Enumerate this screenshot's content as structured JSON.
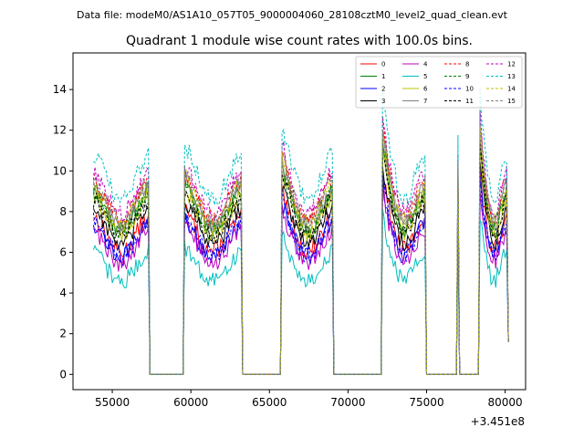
{
  "chart_data": {
    "type": "line",
    "suptitle": "Data file: modeM0/AS1A10_057T05_9000004060_28108cztM0_level2_quad_clean.evt",
    "title": "Quadrant 1 module wise count rates with 100.0s bins.",
    "xlabel": "",
    "ylabel": "",
    "x_offset_label": "+3.451e8",
    "xlim": [
      52500,
      81300
    ],
    "ylim": [
      -0.75,
      15.8
    ],
    "xticks": [
      55000,
      60000,
      65000,
      70000,
      75000,
      80000
    ],
    "xtick_labels": [
      "55000",
      "60000",
      "65000",
      "70000",
      "75000",
      "80000"
    ],
    "yticks": [
      0,
      2,
      4,
      6,
      8,
      10,
      12,
      14
    ],
    "ytick_labels": [
      "0",
      "2",
      "4",
      "6",
      "8",
      "10",
      "12",
      "14"
    ],
    "grid": false,
    "legend_position": "upper right",
    "legend_columns": 4,
    "segments": [
      {
        "start": 53800,
        "end": 57300,
        "peak_scale": 1.0
      },
      {
        "start": 59600,
        "end": 63200,
        "peak_scale": 1.05
      },
      {
        "start": 65800,
        "end": 69000,
        "peak_scale": 1.15
      },
      {
        "start": 72200,
        "end": 74900,
        "peak_scale": 1.3
      },
      {
        "start": 77000,
        "end": 77000,
        "peak_scale": 1.15
      },
      {
        "start": 78400,
        "end": 80100,
        "peak_scale": 1.3
      }
    ],
    "gaps_level": 0.0,
    "series": [
      {
        "name": "0",
        "base": 7.2,
        "color": "#ff0000",
        "dash": "solid"
      },
      {
        "name": "1",
        "base": 8.4,
        "color": "#008000",
        "dash": "solid"
      },
      {
        "name": "2",
        "base": 6.9,
        "color": "#0000ff",
        "dash": "solid"
      },
      {
        "name": "3",
        "base": 7.6,
        "color": "#000000",
        "dash": "solid"
      },
      {
        "name": "4",
        "base": 6.6,
        "color": "#bf00bf",
        "dash": "solid"
      },
      {
        "name": "5",
        "base": 5.6,
        "color": "#00bfbf",
        "dash": "solid"
      },
      {
        "name": "6",
        "base": 8.1,
        "color": "#bfbf00",
        "dash": "solid"
      },
      {
        "name": "7",
        "base": 8.6,
        "color": "#808080",
        "dash": "solid"
      },
      {
        "name": "8",
        "base": 8.9,
        "color": "#ff0000",
        "dash": "dashed"
      },
      {
        "name": "9",
        "base": 8.2,
        "color": "#008000",
        "dash": "dashed"
      },
      {
        "name": "10",
        "base": 7.0,
        "color": "#0000ff",
        "dash": "dashed"
      },
      {
        "name": "11",
        "base": 8.0,
        "color": "#000000",
        "dash": "dashed"
      },
      {
        "name": "12",
        "base": 9.2,
        "color": "#bf00bf",
        "dash": "dashed"
      },
      {
        "name": "13",
        "base": 10.0,
        "color": "#00bfbf",
        "dash": "dashed"
      },
      {
        "name": "14",
        "base": 8.7,
        "color": "#bfbf00",
        "dash": "dashed"
      },
      {
        "name": "15",
        "base": 8.8,
        "color": "#808080",
        "dash": "dashed"
      }
    ]
  }
}
